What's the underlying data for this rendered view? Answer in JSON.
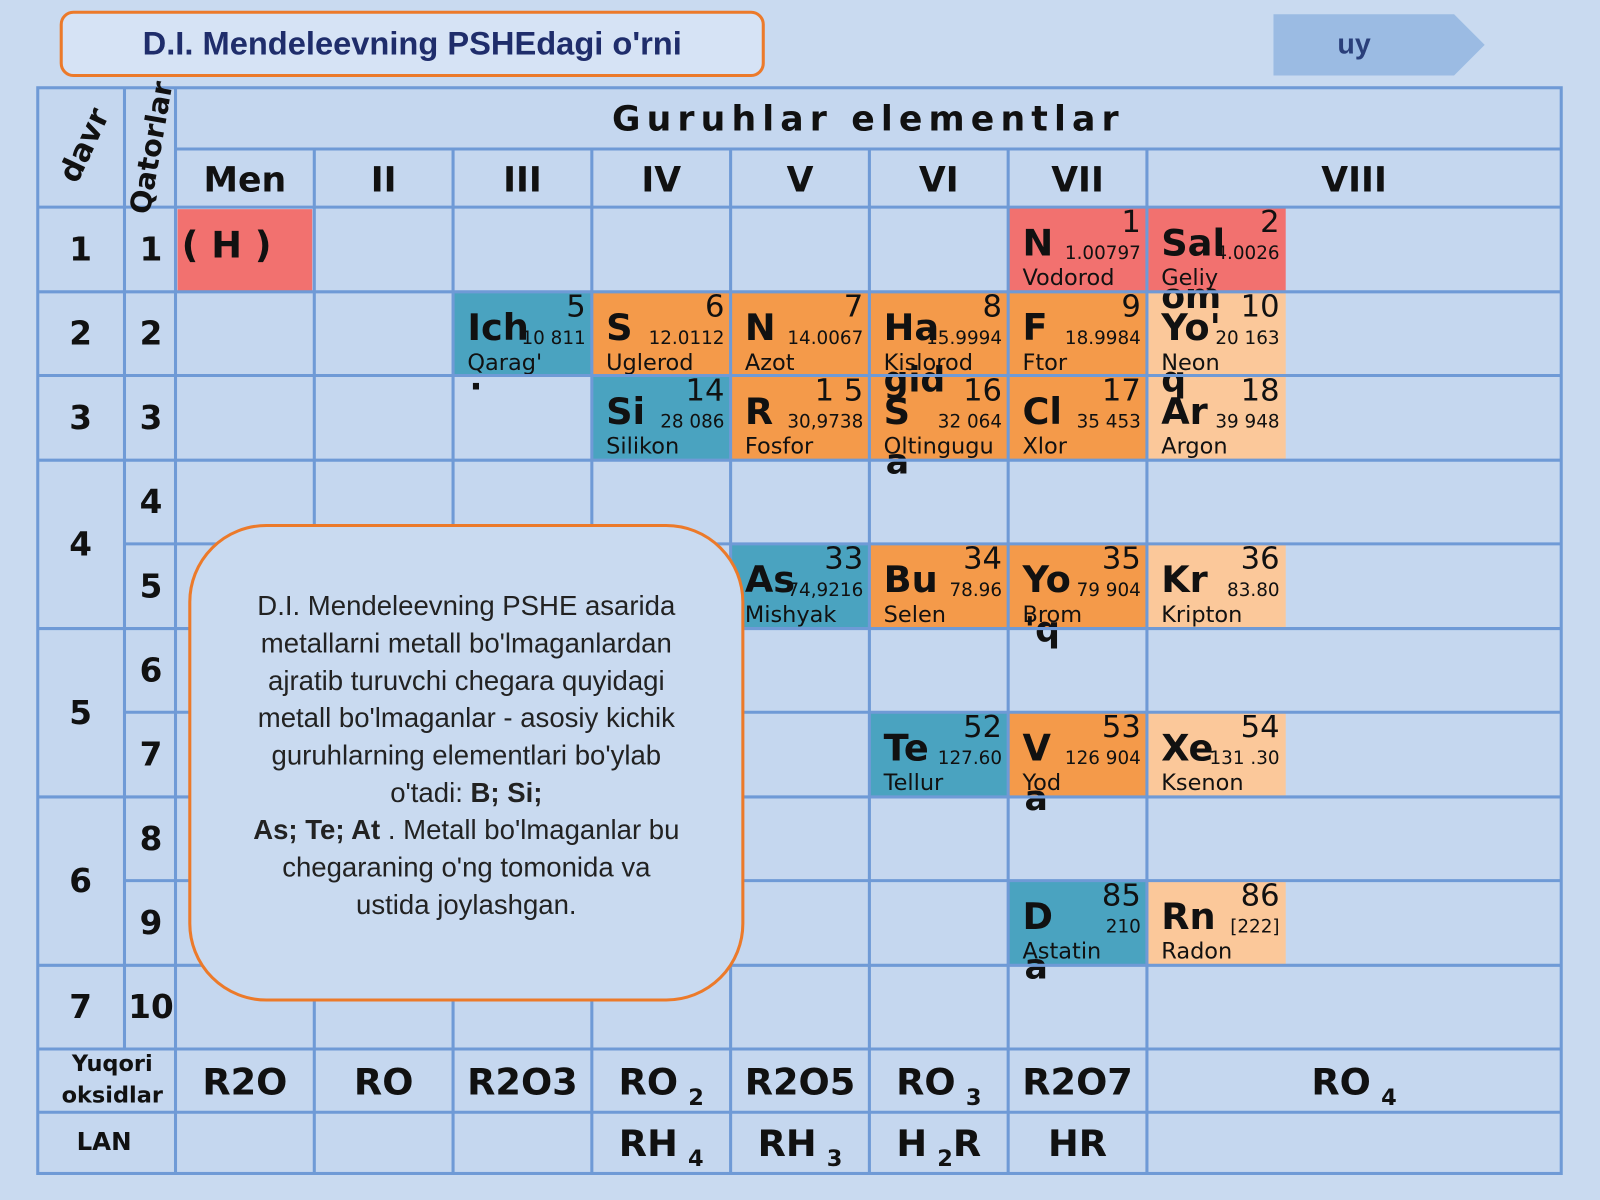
{
  "header": {
    "title": "D.I. Mendeleevning PSHEdagi o'rni",
    "nav_button": "uy"
  },
  "table": {
    "period_header": "davr",
    "row_header": "Qatorlar",
    "group_title": "Guruhlar elementlar",
    "groups": [
      "Men",
      "II",
      "III",
      "IV",
      "V",
      "VI",
      "VII",
      "VIII"
    ],
    "periods": [
      "1",
      "2",
      "3",
      "4",
      "5",
      "6",
      "7"
    ],
    "rows": [
      "1",
      "2",
      "3",
      "4",
      "5",
      "6",
      "7",
      "8",
      "9",
      "10"
    ],
    "hydrogen": "( H )",
    "elements": [
      {
        "symbol": "N",
        "number": "1",
        "mass": "1.00797",
        "name": "Vodorod",
        "color": "#f2716f"
      },
      {
        "symbol": "Sal",
        "number": "2",
        "mass": "4.0026",
        "name": "Geliy",
        "color": "#f2716f"
      },
      {
        "symbol": "Ich",
        "number": "5",
        "mass": "10 811",
        "name": "Qarag'",
        "color": "#4aa3c0",
        "overflow_bottom": "."
      },
      {
        "symbol": "S",
        "number": "6",
        "mass": "12.0112",
        "name": "Uglerod",
        "color": "#f49a4a"
      },
      {
        "symbol": "N",
        "number": "7",
        "mass": "14.0067",
        "name": "Azot",
        "color": "#f49a4a"
      },
      {
        "symbol": "Ha",
        "number": "8",
        "mass": "15.9994",
        "name": "Kislorod",
        "color": "#f49a4a"
      },
      {
        "symbol": "F",
        "number": "9",
        "mass": "18.9984",
        "name": "Ftor",
        "color": "#f49a4a"
      },
      {
        "symbol": "Yo'",
        "number": "10",
        "mass": "20 163",
        "name": "Neon",
        "color": "#fbc89a",
        "overflow_top": "om"
      },
      {
        "symbol": "Si",
        "number": "14",
        "mass": "28 086",
        "name": "Silikon",
        "color": "#4aa3c0"
      },
      {
        "symbol": "R",
        "number": "1 5",
        "mass": "30,9738",
        "name": "Fosfor",
        "color": "#f49a4a"
      },
      {
        "symbol": "S",
        "number": "16",
        "mass": "32 064",
        "name": "Oltingugu",
        "color": "#f49a4a",
        "overflow_top": "gid",
        "overflow_bottom": "a"
      },
      {
        "symbol": "Cl",
        "number": "17",
        "mass": "35 453",
        "name": "Xlor",
        "color": "#f49a4a"
      },
      {
        "symbol": "Ar",
        "number": "18",
        "mass": "39 948",
        "name": "Argon",
        "color": "#fbc89a",
        "overflow_top": "q"
      },
      {
        "symbol": "As",
        "number": "33",
        "mass": "74,9216",
        "name": "Mishyak",
        "color": "#4aa3c0"
      },
      {
        "symbol": "Bu",
        "number": "34",
        "mass": "78.96",
        "name": "Selen",
        "color": "#f49a4a"
      },
      {
        "symbol": "Yo",
        "number": "35",
        "mass": "79 904",
        "name": "Brom",
        "color": "#f49a4a",
        "overflow_bottom": "'q"
      },
      {
        "symbol": "Kr",
        "number": "36",
        "mass": "83.80",
        "name": "Kripton",
        "color": "#fbc89a"
      },
      {
        "symbol": "Te",
        "number": "52",
        "mass": "127.60",
        "name": "Tellur",
        "color": "#4aa3c0"
      },
      {
        "symbol": "V",
        "number": "53",
        "mass": "126 904",
        "name": "Yod",
        "color": "#f49a4a",
        "overflow_bottom": "a"
      },
      {
        "symbol": "Xe",
        "number": "54",
        "mass": "131 .30",
        "name": "Ksenon",
        "color": "#fbc89a"
      },
      {
        "symbol": "D",
        "number": "85",
        "mass": "210",
        "name": "Astatin",
        "color": "#4aa3c0",
        "overflow_bottom": "a"
      },
      {
        "symbol": "Rn",
        "number": "86",
        "mass": "[222]",
        "name": "Radon",
        "color": "#fbc89a"
      }
    ],
    "oxides": {
      "label": [
        "Yuqori",
        "oksidlar"
      ],
      "values": [
        [
          {
            "t": "R2O"
          }
        ],
        [
          {
            "t": "RO"
          }
        ],
        [
          {
            "t": "R2O3"
          }
        ],
        [
          {
            "t": "RO"
          },
          {
            "t": "2",
            "sub": true
          }
        ],
        [
          {
            "t": "R2O5"
          }
        ],
        [
          {
            "t": "RO"
          },
          {
            "t": "3",
            "sub": true
          }
        ],
        [
          {
            "t": "R2O7"
          }
        ],
        [
          {
            "t": "RO"
          },
          {
            "t": "4",
            "sub": true
          }
        ]
      ]
    },
    "hydrides": {
      "label": "LAN",
      "values": [
        [
          {
            "t": "RH"
          },
          {
            "t": "4",
            "sub": true
          }
        ],
        [
          {
            "t": "RH"
          },
          {
            "t": "3",
            "sub": true
          }
        ],
        [
          {
            "t": "H"
          },
          {
            "t": "2",
            "sub": true
          },
          {
            "t": "R"
          }
        ],
        [
          {
            "t": "HR"
          }
        ]
      ]
    }
  },
  "note": {
    "lines": [
      [
        {
          "t": "D.I. Mendeleevning PSHE asarida"
        }
      ],
      [
        {
          "t": "metallarni metall bo'lmaganlardan"
        }
      ],
      [
        {
          "t": "ajratib turuvchi chegara quyidagi"
        }
      ],
      [
        {
          "t": "metall bo'lmaganlar - asosiy kichik"
        }
      ],
      [
        {
          "t": "guruhlarning elementlari bo'ylab"
        }
      ],
      [
        {
          "t": "o'tadi: "
        },
        {
          "t": "B; Si;",
          "bold": true
        }
      ],
      [
        {
          "t": "As; Te; At",
          "bold": true
        },
        {
          "t": " . Metall bo'lmaganlar bu"
        }
      ],
      [
        {
          "t": "chegaraning o'ng tomonida va"
        }
      ],
      [
        {
          "t": "ustida joylashgan."
        }
      ]
    ]
  }
}
